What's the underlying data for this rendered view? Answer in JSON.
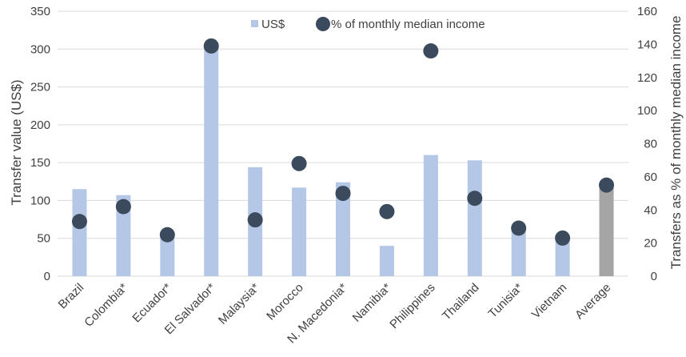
{
  "colors": {
    "bar": "#b4c7e7",
    "bar_average": "#a5a5a5",
    "marker": "#3b4a5c",
    "grid": "#d9d9d9",
    "text": "#404040"
  },
  "chart_data": {
    "type": "bar",
    "categories": [
      "Brazil",
      "Colombia*",
      "Ecuador*",
      "El Salvador*",
      "Malaysia*",
      "Morocco",
      "N. Macedonia*",
      "Namibia*",
      "Philippines",
      "Thailand",
      "Tunisia*",
      "Vietnam",
      "Average"
    ],
    "series": [
      {
        "name": "US$",
        "axis": "left",
        "kind": "bar",
        "values": [
          115,
          107,
          57,
          304,
          144,
          117,
          124,
          40,
          160,
          153,
          65,
          51,
          123
        ]
      },
      {
        "name": "% of monthly median income",
        "axis": "right",
        "kind": "marker",
        "values": [
          33,
          42,
          25,
          139,
          34,
          68,
          50,
          39,
          136,
          47,
          29,
          23,
          55
        ]
      }
    ],
    "ylabel": "Transfer value (US$)",
    "ylabel_right": "Transfers as % of monthly median income",
    "ylim": [
      0,
      350
    ],
    "ylim_right": [
      0,
      160
    ],
    "yticks": [
      "0",
      "50",
      "100",
      "150",
      "200",
      "250",
      "300",
      "350"
    ],
    "yticks_right": [
      "0",
      "20",
      "40",
      "60",
      "80",
      "100",
      "120",
      "140",
      "160"
    ],
    "grid": true,
    "legend_position": "top-center"
  }
}
